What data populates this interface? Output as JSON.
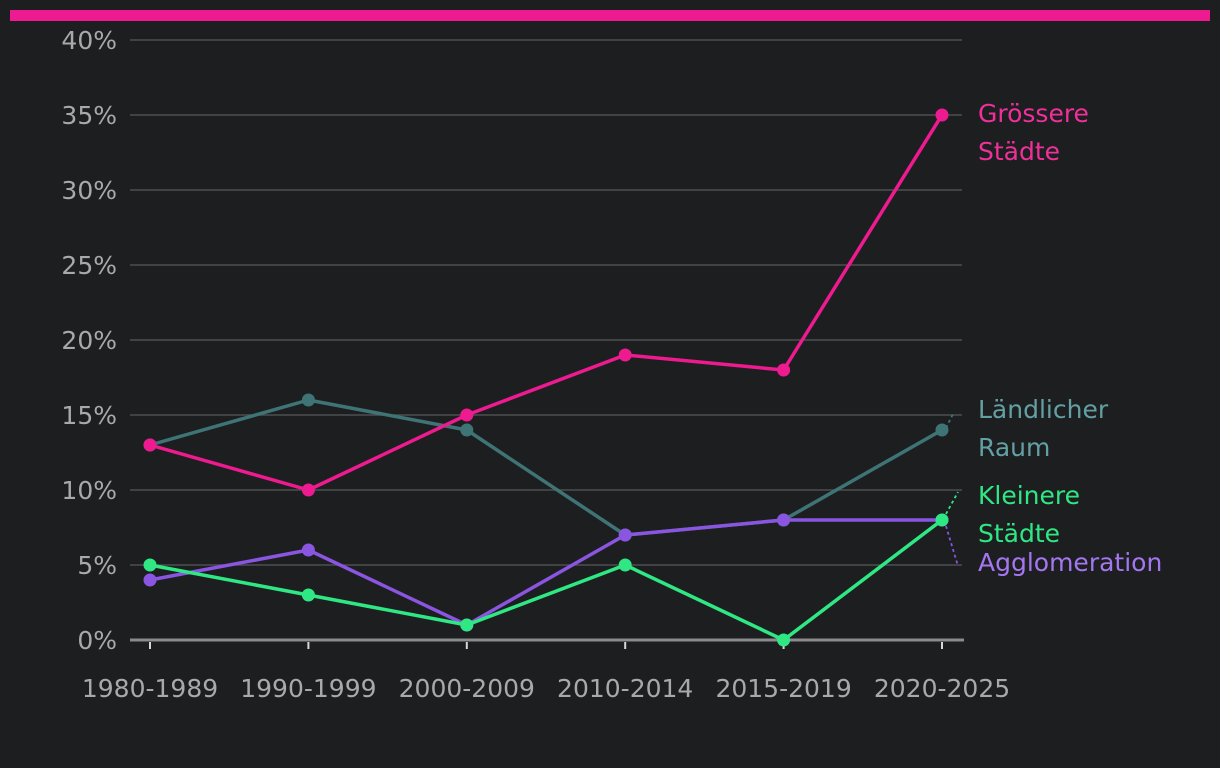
{
  "colors": {
    "background": "#1d1e20",
    "accent_bar": "#ee1a8f",
    "grid": "#4d4e50",
    "axis": "#8a8b8d",
    "tick_text": "#a8a9ab"
  },
  "chart_data": {
    "type": "line",
    "title": "",
    "xlabel": "",
    "ylabel": "",
    "ylim": [
      0,
      40
    ],
    "categories": [
      "1980-1989",
      "1990-1999",
      "2000-2009",
      "2010-2014",
      "2015-2019",
      "2020-2025"
    ],
    "yticks": [
      0,
      5,
      10,
      15,
      20,
      25,
      30,
      35,
      40
    ],
    "y_tick_labels": [
      "0%",
      "5%",
      "10%",
      "15%",
      "20%",
      "25%",
      "30%",
      "35%",
      "40%"
    ],
    "series": [
      {
        "id": "rural",
        "name": "Ländlicher Raum",
        "label_lines": [
          "Ländlicher",
          "Raum"
        ],
        "color": "#3f7476",
        "label_color": "#63a0a3",
        "values": [
          13,
          16,
          14,
          7,
          8,
          14
        ]
      },
      {
        "id": "agglo",
        "name": "Agglomeration",
        "label_lines": [
          "Agglomeration"
        ],
        "color": "#8a55e0",
        "label_color": "#a477f0",
        "values": [
          4,
          6,
          1,
          7,
          8,
          8
        ]
      },
      {
        "id": "small",
        "name": "Kleinere Städte",
        "label_lines": [
          "Kleinere",
          "Städte"
        ],
        "color": "#2fe884",
        "label_color": "#2fe884",
        "values": [
          5,
          3,
          1,
          5,
          0,
          8
        ]
      },
      {
        "id": "large",
        "name": "Grössere Städte",
        "label_lines": [
          "Grössere",
          "Städte"
        ],
        "color": "#ee1a8f",
        "label_color": "#f0309a",
        "values": [
          13,
          10,
          15,
          19,
          18,
          35
        ]
      }
    ]
  }
}
